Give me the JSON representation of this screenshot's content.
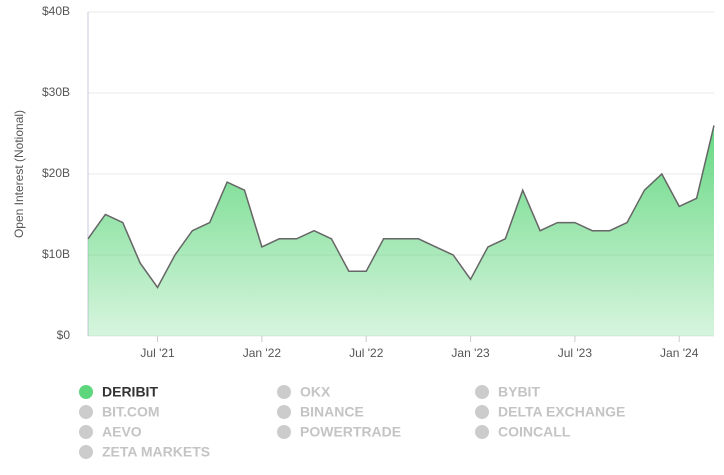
{
  "chart_data": {
    "type": "area",
    "y_label": "Open Interest (Notional)",
    "x": [
      "2021-03",
      "2021-04",
      "2021-05",
      "2021-06",
      "2021-07",
      "2021-08",
      "2021-09",
      "2021-10",
      "2021-11",
      "2021-12",
      "2022-01",
      "2022-02",
      "2022-03",
      "2022-04",
      "2022-05",
      "2022-06",
      "2022-07",
      "2022-08",
      "2022-09",
      "2022-10",
      "2022-11",
      "2022-12",
      "2023-01",
      "2023-02",
      "2023-03",
      "2023-04",
      "2023-05",
      "2023-06",
      "2023-07",
      "2023-08",
      "2023-09",
      "2023-10",
      "2023-11",
      "2023-12",
      "2024-01",
      "2024-02",
      "2024-03"
    ],
    "series": [
      {
        "name": "DERIBIT",
        "color": "#5ed67c",
        "line_color": "#666666",
        "values": [
          12,
          15,
          14,
          9,
          6,
          10,
          13,
          14,
          19,
          18,
          11,
          12,
          12,
          13,
          12,
          8,
          8,
          12,
          12,
          12,
          11,
          10,
          7,
          11,
          12,
          18,
          13,
          14,
          14,
          13,
          13,
          14,
          18,
          20,
          16,
          17,
          26
        ]
      }
    ],
    "inactive_series": [
      {
        "name": "OKX"
      },
      {
        "name": "BYBIT"
      },
      {
        "name": "BIT.COM"
      },
      {
        "name": "BINANCE"
      },
      {
        "name": "DELTA EXCHANGE"
      },
      {
        "name": "AEVO"
      },
      {
        "name": "POWERTRADE"
      },
      {
        "name": "COINCALL"
      },
      {
        "name": "ZETA MARKETS"
      }
    ],
    "inactive_color": "#cccccc",
    "xticks": [
      {
        "value": "2021-07",
        "label": "Jul '21"
      },
      {
        "value": "2022-01",
        "label": "Jan '22"
      },
      {
        "value": "2022-07",
        "label": "Jul '22"
      },
      {
        "value": "2023-01",
        "label": "Jan '23"
      },
      {
        "value": "2023-07",
        "label": "Jul '23"
      },
      {
        "value": "2024-01",
        "label": "Jan '24"
      }
    ],
    "ylim": [
      0,
      40
    ],
    "yticks": [
      {
        "value": 0,
        "label": "$0"
      },
      {
        "value": 10,
        "label": "$10B"
      },
      {
        "value": 20,
        "label": "$20B"
      },
      {
        "value": 30,
        "label": "$30B"
      },
      {
        "value": 40,
        "label": "$40B"
      }
    ],
    "grid": true
  }
}
